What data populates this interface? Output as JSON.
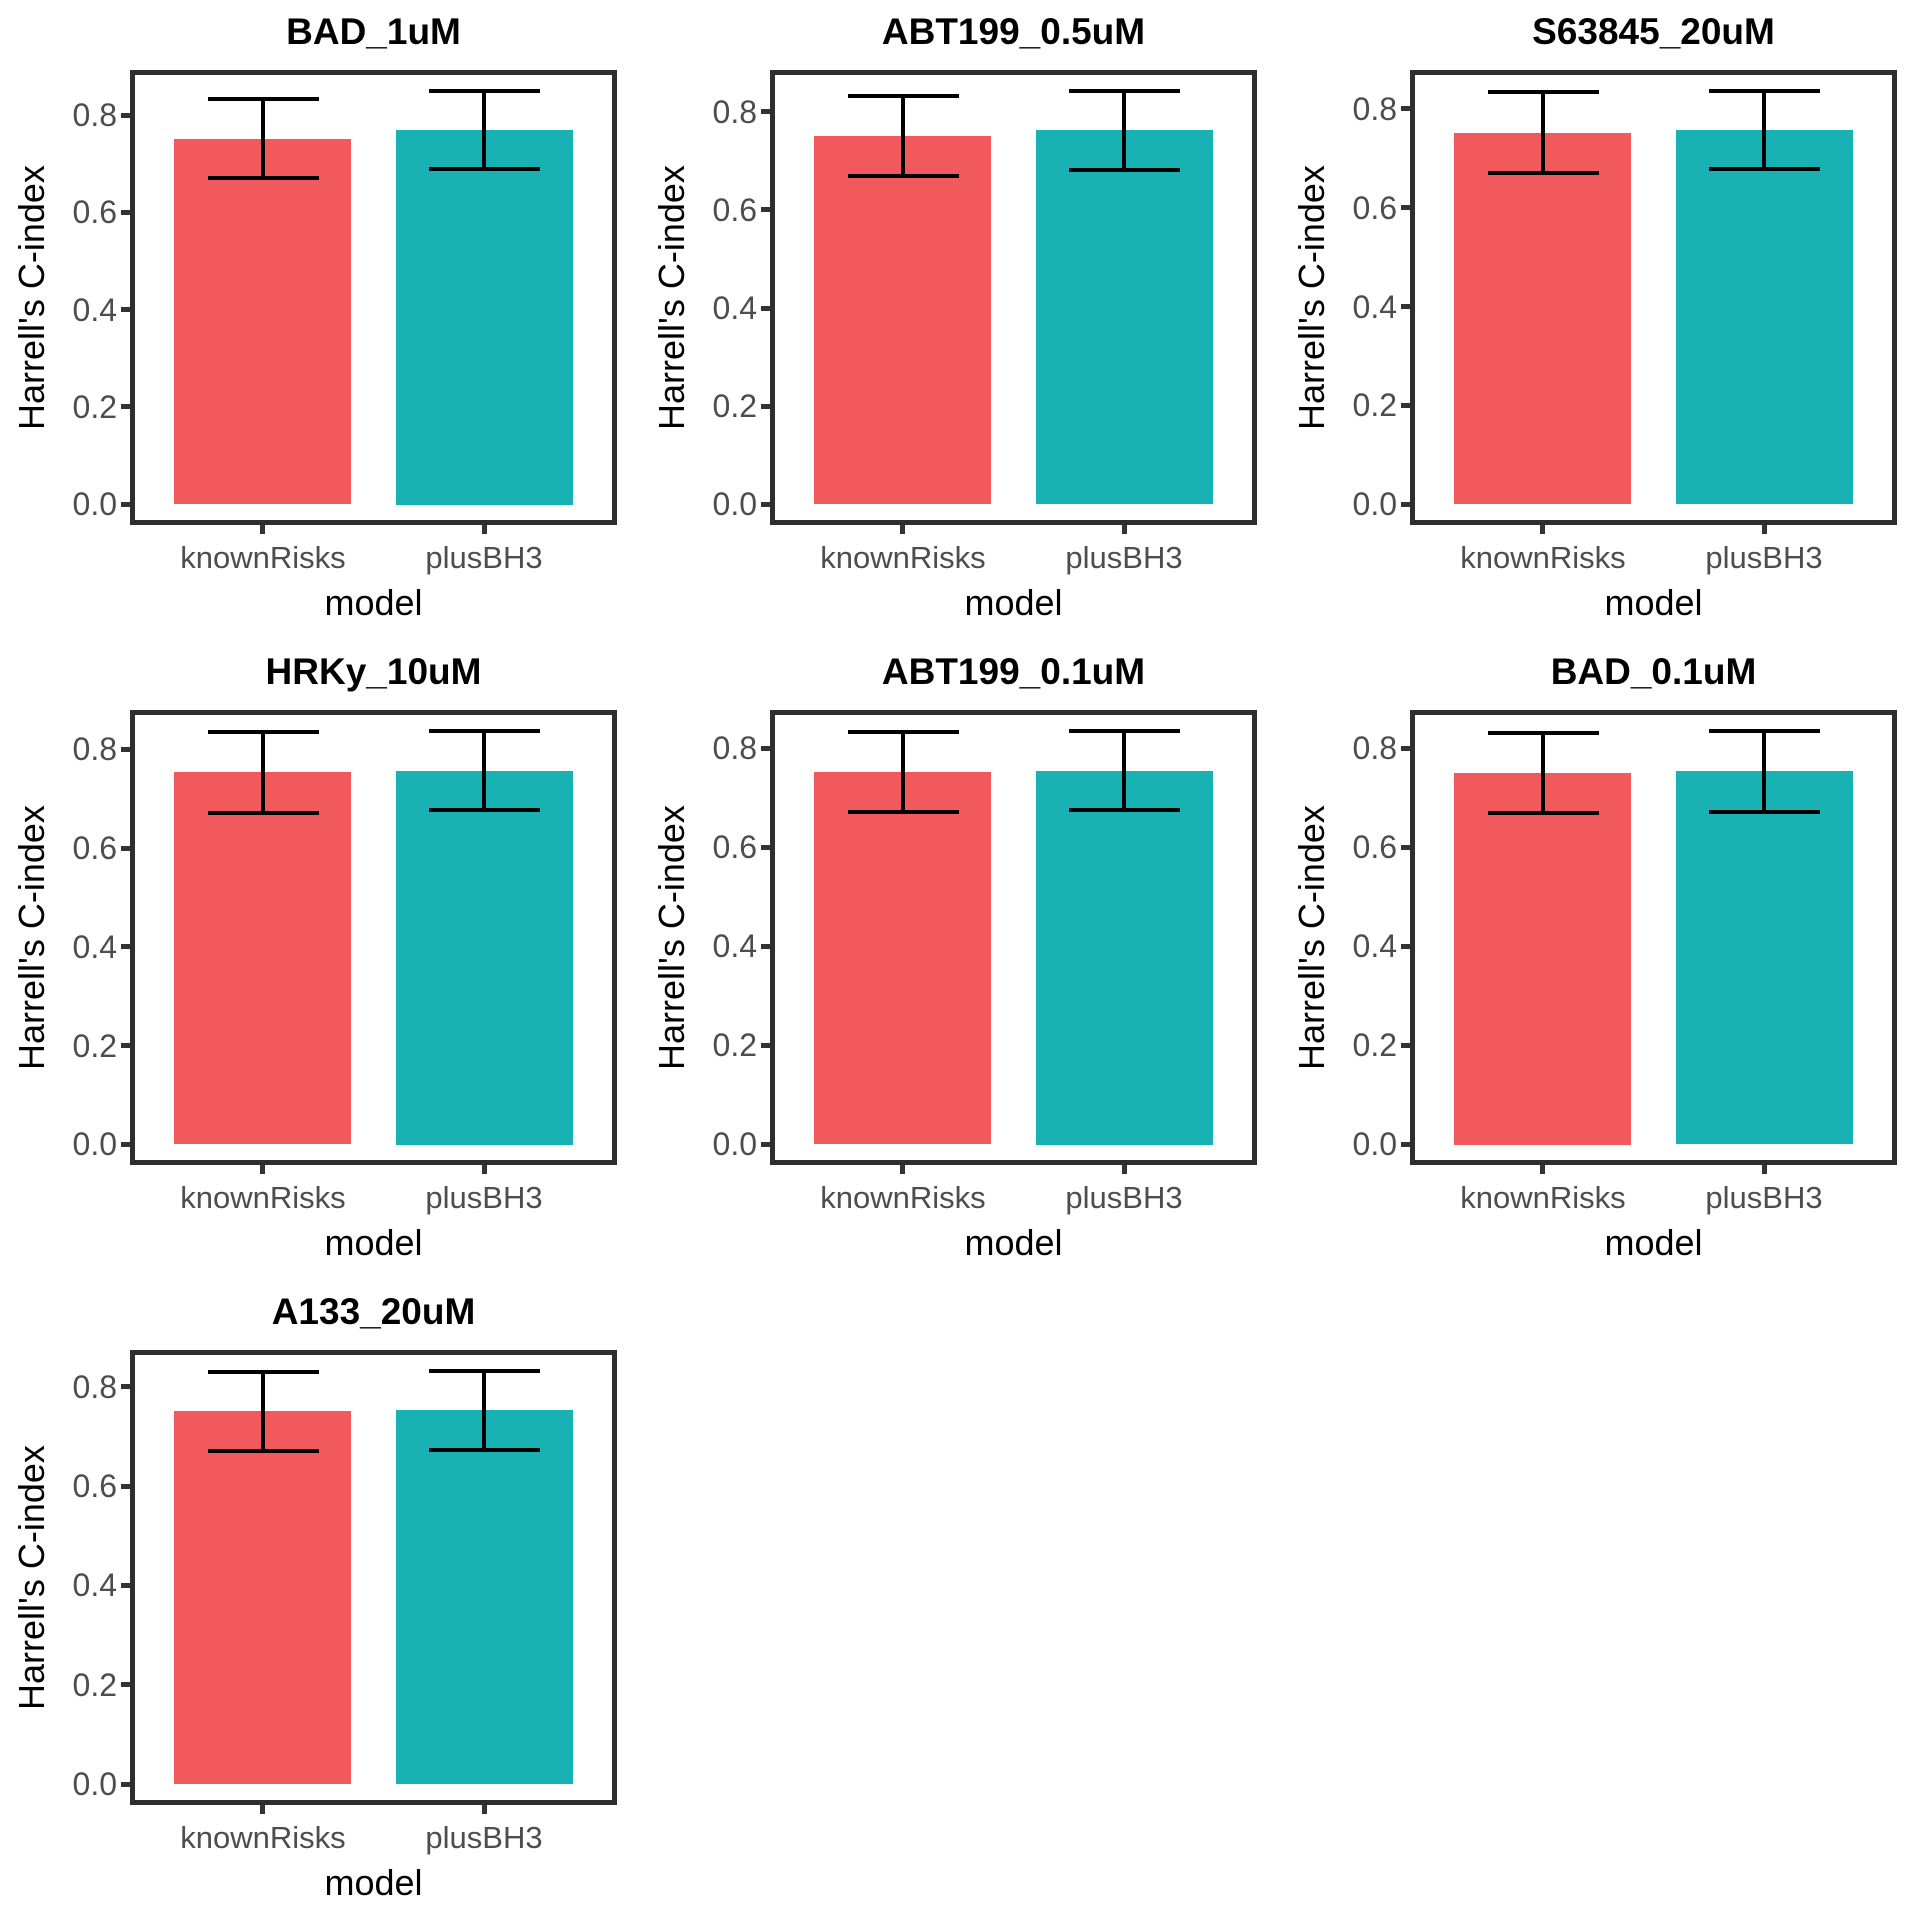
{
  "figure": {
    "background": "#FFFFFF",
    "styles": {
      "panel_border": "#2E2E2E",
      "tick_mark": "#333333",
      "tick_label_color": "#4D4D4D",
      "axis_title_color": "#000000",
      "panel_title_color": "#000000",
      "error_bar_color": "#000000"
    }
  },
  "chart_data": {
    "type": "bar",
    "grid_layout": {
      "columns": 3,
      "rows": 3,
      "filled_panels": 7
    },
    "xlabel": "model",
    "ylabel": "Harrell's C-index",
    "categories": [
      "knownRisks",
      "plusBH3"
    ],
    "yticks": [
      0.0,
      0.2,
      0.4,
      0.6,
      0.8
    ],
    "grid_lines": false,
    "legend": "none",
    "error_bars": true,
    "bar_colors": {
      "knownRisks": "#F2595C",
      "plusBH3": "#18B1B4"
    },
    "panels": [
      {
        "title": "BAD_1uM",
        "values": [
          0.75,
          0.77
        ],
        "error_low": [
          0.67,
          0.69
        ],
        "error_high": [
          0.832,
          0.85
        ]
      },
      {
        "title": "ABT199_0.5uM",
        "values": [
          0.751,
          0.762
        ],
        "error_low": [
          0.67,
          0.682
        ],
        "error_high": [
          0.833,
          0.843
        ]
      },
      {
        "title": "S63845_20uM",
        "values": [
          0.751,
          0.757
        ],
        "error_low": [
          0.671,
          0.678
        ],
        "error_high": [
          0.834,
          0.837
        ]
      },
      {
        "title": "HRKy_10uM",
        "values": [
          0.754,
          0.757
        ],
        "error_low": [
          0.672,
          0.677
        ],
        "error_high": [
          0.836,
          0.838
        ]
      },
      {
        "title": "ABT199_0.1uM",
        "values": [
          0.751,
          0.754
        ],
        "error_low": [
          0.671,
          0.674
        ],
        "error_high": [
          0.832,
          0.835
        ]
      },
      {
        "title": "BAD_0.1uM",
        "values": [
          0.751,
          0.754
        ],
        "error_low": [
          0.67,
          0.672
        ],
        "error_high": [
          0.832,
          0.836
        ]
      },
      {
        "title": "A133_20uM",
        "values": [
          0.75,
          0.753
        ],
        "error_low": [
          0.67,
          0.672
        ],
        "error_high": [
          0.83,
          0.832
        ]
      }
    ]
  }
}
